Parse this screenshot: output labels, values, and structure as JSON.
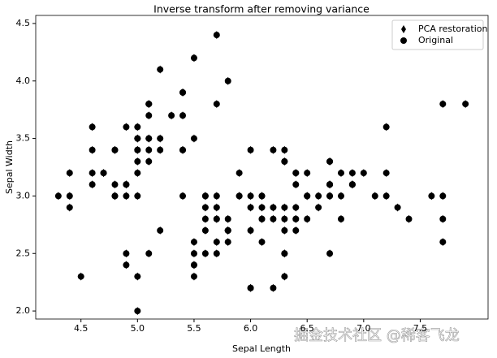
{
  "chart_data": {
    "type": "scatter",
    "title": "Inverse transform after removing variance",
    "x_label": "Sepal Length",
    "y_label": "Sepal Width",
    "xlim": [
      4.1,
      8.1
    ],
    "ylim": [
      1.93,
      4.57
    ],
    "xticks": [
      4.5,
      {
        "value": 5,
        "label": "5.0"
      },
      5.5,
      {
        "value": 6,
        "label": "6.0"
      },
      6.5,
      {
        "value": 7,
        "label": "7.0"
      },
      7.5
    ],
    "yticks": [
      {
        "value": 2,
        "label": "2.0"
      },
      2.5,
      {
        "value": 3,
        "label": "3.0"
      },
      3.5,
      {
        "value": 4,
        "label": "4.0"
      },
      4.5
    ],
    "legend": "upper right",
    "watermark": "掘金技术社区 @稀客飞龙",
    "series": [
      {
        "name": "PCA restoration",
        "color": "#000000",
        "marker": "thin_diamond",
        "x": [
          5.1,
          4.9,
          4.7,
          4.6,
          5.0,
          5.4,
          4.6,
          5.0,
          4.4,
          4.9,
          5.4,
          4.8,
          4.8,
          4.3,
          5.8,
          5.7,
          5.4,
          5.1,
          5.7,
          5.1,
          5.4,
          5.1,
          4.6,
          5.1,
          4.8,
          5.0,
          5.0,
          5.2,
          5.2,
          4.7,
          4.8,
          5.4,
          5.2,
          5.5,
          4.9,
          5.0,
          5.5,
          4.9,
          4.4,
          5.1,
          5.0,
          4.5,
          4.4,
          5.0,
          5.1,
          4.8,
          5.1,
          4.6,
          5.3,
          5.0,
          7.0,
          6.4,
          6.9,
          5.5,
          6.5,
          5.7,
          6.3,
          4.9,
          6.6,
          5.2,
          5.0,
          5.9,
          6.0,
          6.1,
          5.6,
          6.7,
          5.6,
          5.8,
          6.2,
          5.6,
          5.9,
          6.1,
          6.3,
          6.1,
          6.4,
          6.6,
          6.8,
          6.7,
          6.0,
          5.7,
          5.5,
          5.5,
          5.8,
          6.0,
          5.4,
          6.0,
          6.7,
          6.3,
          5.6,
          5.5,
          5.5,
          6.1,
          5.8,
          5.0,
          5.6,
          5.7,
          5.7,
          6.2,
          5.1,
          5.7,
          6.3,
          5.8,
          7.1,
          6.3,
          6.5,
          7.6,
          4.9,
          7.3,
          6.7,
          7.2,
          6.5,
          6.4,
          6.8,
          5.7,
          5.8,
          6.4,
          6.5,
          7.7,
          7.7,
          6.0,
          6.9,
          5.6,
          7.7,
          6.3,
          6.7,
          7.2,
          6.2,
          6.1,
          6.4,
          7.2,
          7.4,
          7.9,
          6.4,
          6.3,
          6.1,
          7.7,
          6.3,
          6.4,
          6.0,
          6.9,
          6.7,
          6.9,
          5.8,
          6.8,
          6.7,
          6.7,
          6.3,
          6.5,
          6.2,
          5.9
        ],
        "values": [
          3.5,
          3.0,
          3.2,
          3.1,
          3.6,
          3.9,
          3.4,
          3.4,
          2.9,
          3.1,
          3.7,
          3.4,
          3.0,
          3.0,
          4.0,
          4.4,
          3.9,
          3.5,
          3.8,
          3.8,
          3.4,
          3.7,
          3.6,
          3.3,
          3.4,
          3.0,
          3.4,
          3.5,
          3.4,
          3.2,
          3.1,
          3.4,
          4.1,
          4.2,
          3.1,
          3.2,
          3.5,
          3.6,
          3.0,
          3.4,
          3.5,
          2.3,
          3.2,
          3.5,
          3.8,
          3.0,
          3.8,
          3.2,
          3.7,
          3.3,
          3.2,
          3.2,
          3.1,
          2.3,
          2.8,
          2.8,
          3.3,
          2.4,
          2.9,
          2.7,
          2.0,
          3.0,
          2.2,
          2.9,
          2.9,
          3.1,
          3.0,
          2.7,
          2.2,
          2.5,
          3.2,
          2.8,
          2.5,
          2.8,
          2.9,
          3.0,
          2.8,
          3.0,
          2.9,
          2.6,
          2.4,
          2.4,
          2.7,
          2.7,
          3.0,
          3.4,
          3.1,
          2.3,
          3.0,
          2.5,
          2.6,
          3.0,
          2.6,
          2.3,
          2.7,
          3.0,
          2.9,
          2.9,
          2.5,
          2.8,
          3.3,
          2.7,
          3.0,
          2.9,
          3.0,
          3.0,
          2.5,
          2.9,
          2.5,
          3.6,
          3.2,
          2.7,
          3.0,
          2.5,
          2.8,
          3.2,
          3.0,
          3.8,
          2.6,
          2.2,
          3.2,
          2.8,
          2.8,
          2.7,
          3.3,
          3.2,
          2.8,
          3.0,
          2.8,
          3.0,
          2.8,
          3.8,
          2.8,
          2.8,
          2.6,
          3.0,
          3.4,
          3.1,
          3.0,
          3.1,
          3.1,
          3.1,
          2.7,
          3.2,
          3.3,
          3.0,
          2.5,
          3.0,
          3.4,
          3.0
        ]
      },
      {
        "name": "Original",
        "color": "#000000",
        "marker": "circle",
        "x": [
          5.1,
          4.9,
          4.7,
          4.6,
          5.0,
          5.4,
          4.6,
          5.0,
          4.4,
          4.9,
          5.4,
          4.8,
          4.8,
          4.3,
          5.8,
          5.7,
          5.4,
          5.1,
          5.7,
          5.1,
          5.4,
          5.1,
          4.6,
          5.1,
          4.8,
          5.0,
          5.0,
          5.2,
          5.2,
          4.7,
          4.8,
          5.4,
          5.2,
          5.5,
          4.9,
          5.0,
          5.5,
          4.9,
          4.4,
          5.1,
          5.0,
          4.5,
          4.4,
          5.0,
          5.1,
          4.8,
          5.1,
          4.6,
          5.3,
          5.0,
          7.0,
          6.4,
          6.9,
          5.5,
          6.5,
          5.7,
          6.3,
          4.9,
          6.6,
          5.2,
          5.0,
          5.9,
          6.0,
          6.1,
          5.6,
          6.7,
          5.6,
          5.8,
          6.2,
          5.6,
          5.9,
          6.1,
          6.3,
          6.1,
          6.4,
          6.6,
          6.8,
          6.7,
          6.0,
          5.7,
          5.5,
          5.5,
          5.8,
          6.0,
          5.4,
          6.0,
          6.7,
          6.3,
          5.6,
          5.5,
          5.5,
          6.1,
          5.8,
          5.0,
          5.6,
          5.7,
          5.7,
          6.2,
          5.1,
          5.7,
          6.3,
          5.8,
          7.1,
          6.3,
          6.5,
          7.6,
          4.9,
          7.3,
          6.7,
          7.2,
          6.5,
          6.4,
          6.8,
          5.7,
          5.8,
          6.4,
          6.5,
          7.7,
          7.7,
          6.0,
          6.9,
          5.6,
          7.7,
          6.3,
          6.7,
          7.2,
          6.2,
          6.1,
          6.4,
          7.2,
          7.4,
          7.9,
          6.4,
          6.3,
          6.1,
          7.7,
          6.3,
          6.4,
          6.0,
          6.9,
          6.7,
          6.9,
          5.8,
          6.8,
          6.7,
          6.7,
          6.3,
          6.5,
          6.2,
          5.9
        ],
        "values": [
          3.5,
          3.0,
          3.2,
          3.1,
          3.6,
          3.9,
          3.4,
          3.4,
          2.9,
          3.1,
          3.7,
          3.4,
          3.0,
          3.0,
          4.0,
          4.4,
          3.9,
          3.5,
          3.8,
          3.8,
          3.4,
          3.7,
          3.6,
          3.3,
          3.4,
          3.0,
          3.4,
          3.5,
          3.4,
          3.2,
          3.1,
          3.4,
          4.1,
          4.2,
          3.1,
          3.2,
          3.5,
          3.6,
          3.0,
          3.4,
          3.5,
          2.3,
          3.2,
          3.5,
          3.8,
          3.0,
          3.8,
          3.2,
          3.7,
          3.3,
          3.2,
          3.2,
          3.1,
          2.3,
          2.8,
          2.8,
          3.3,
          2.4,
          2.9,
          2.7,
          2.0,
          3.0,
          2.2,
          2.9,
          2.9,
          3.1,
          3.0,
          2.7,
          2.2,
          2.5,
          3.2,
          2.8,
          2.5,
          2.8,
          2.9,
          3.0,
          2.8,
          3.0,
          2.9,
          2.6,
          2.4,
          2.4,
          2.7,
          2.7,
          3.0,
          3.4,
          3.1,
          2.3,
          3.0,
          2.5,
          2.6,
          3.0,
          2.6,
          2.3,
          2.7,
          3.0,
          2.9,
          2.9,
          2.5,
          2.8,
          3.3,
          2.7,
          3.0,
          2.9,
          3.0,
          3.0,
          2.5,
          2.9,
          2.5,
          3.6,
          3.2,
          2.7,
          3.0,
          2.5,
          2.8,
          3.2,
          3.0,
          3.8,
          2.6,
          2.2,
          3.2,
          2.8,
          2.8,
          2.7,
          3.3,
          3.2,
          2.8,
          3.0,
          2.8,
          3.0,
          2.8,
          3.8,
          2.8,
          2.8,
          2.6,
          3.0,
          3.4,
          3.1,
          3.0,
          3.1,
          3.1,
          3.1,
          2.7,
          3.2,
          3.3,
          3.0,
          2.5,
          3.0,
          3.4,
          3.0
        ]
      }
    ]
  }
}
